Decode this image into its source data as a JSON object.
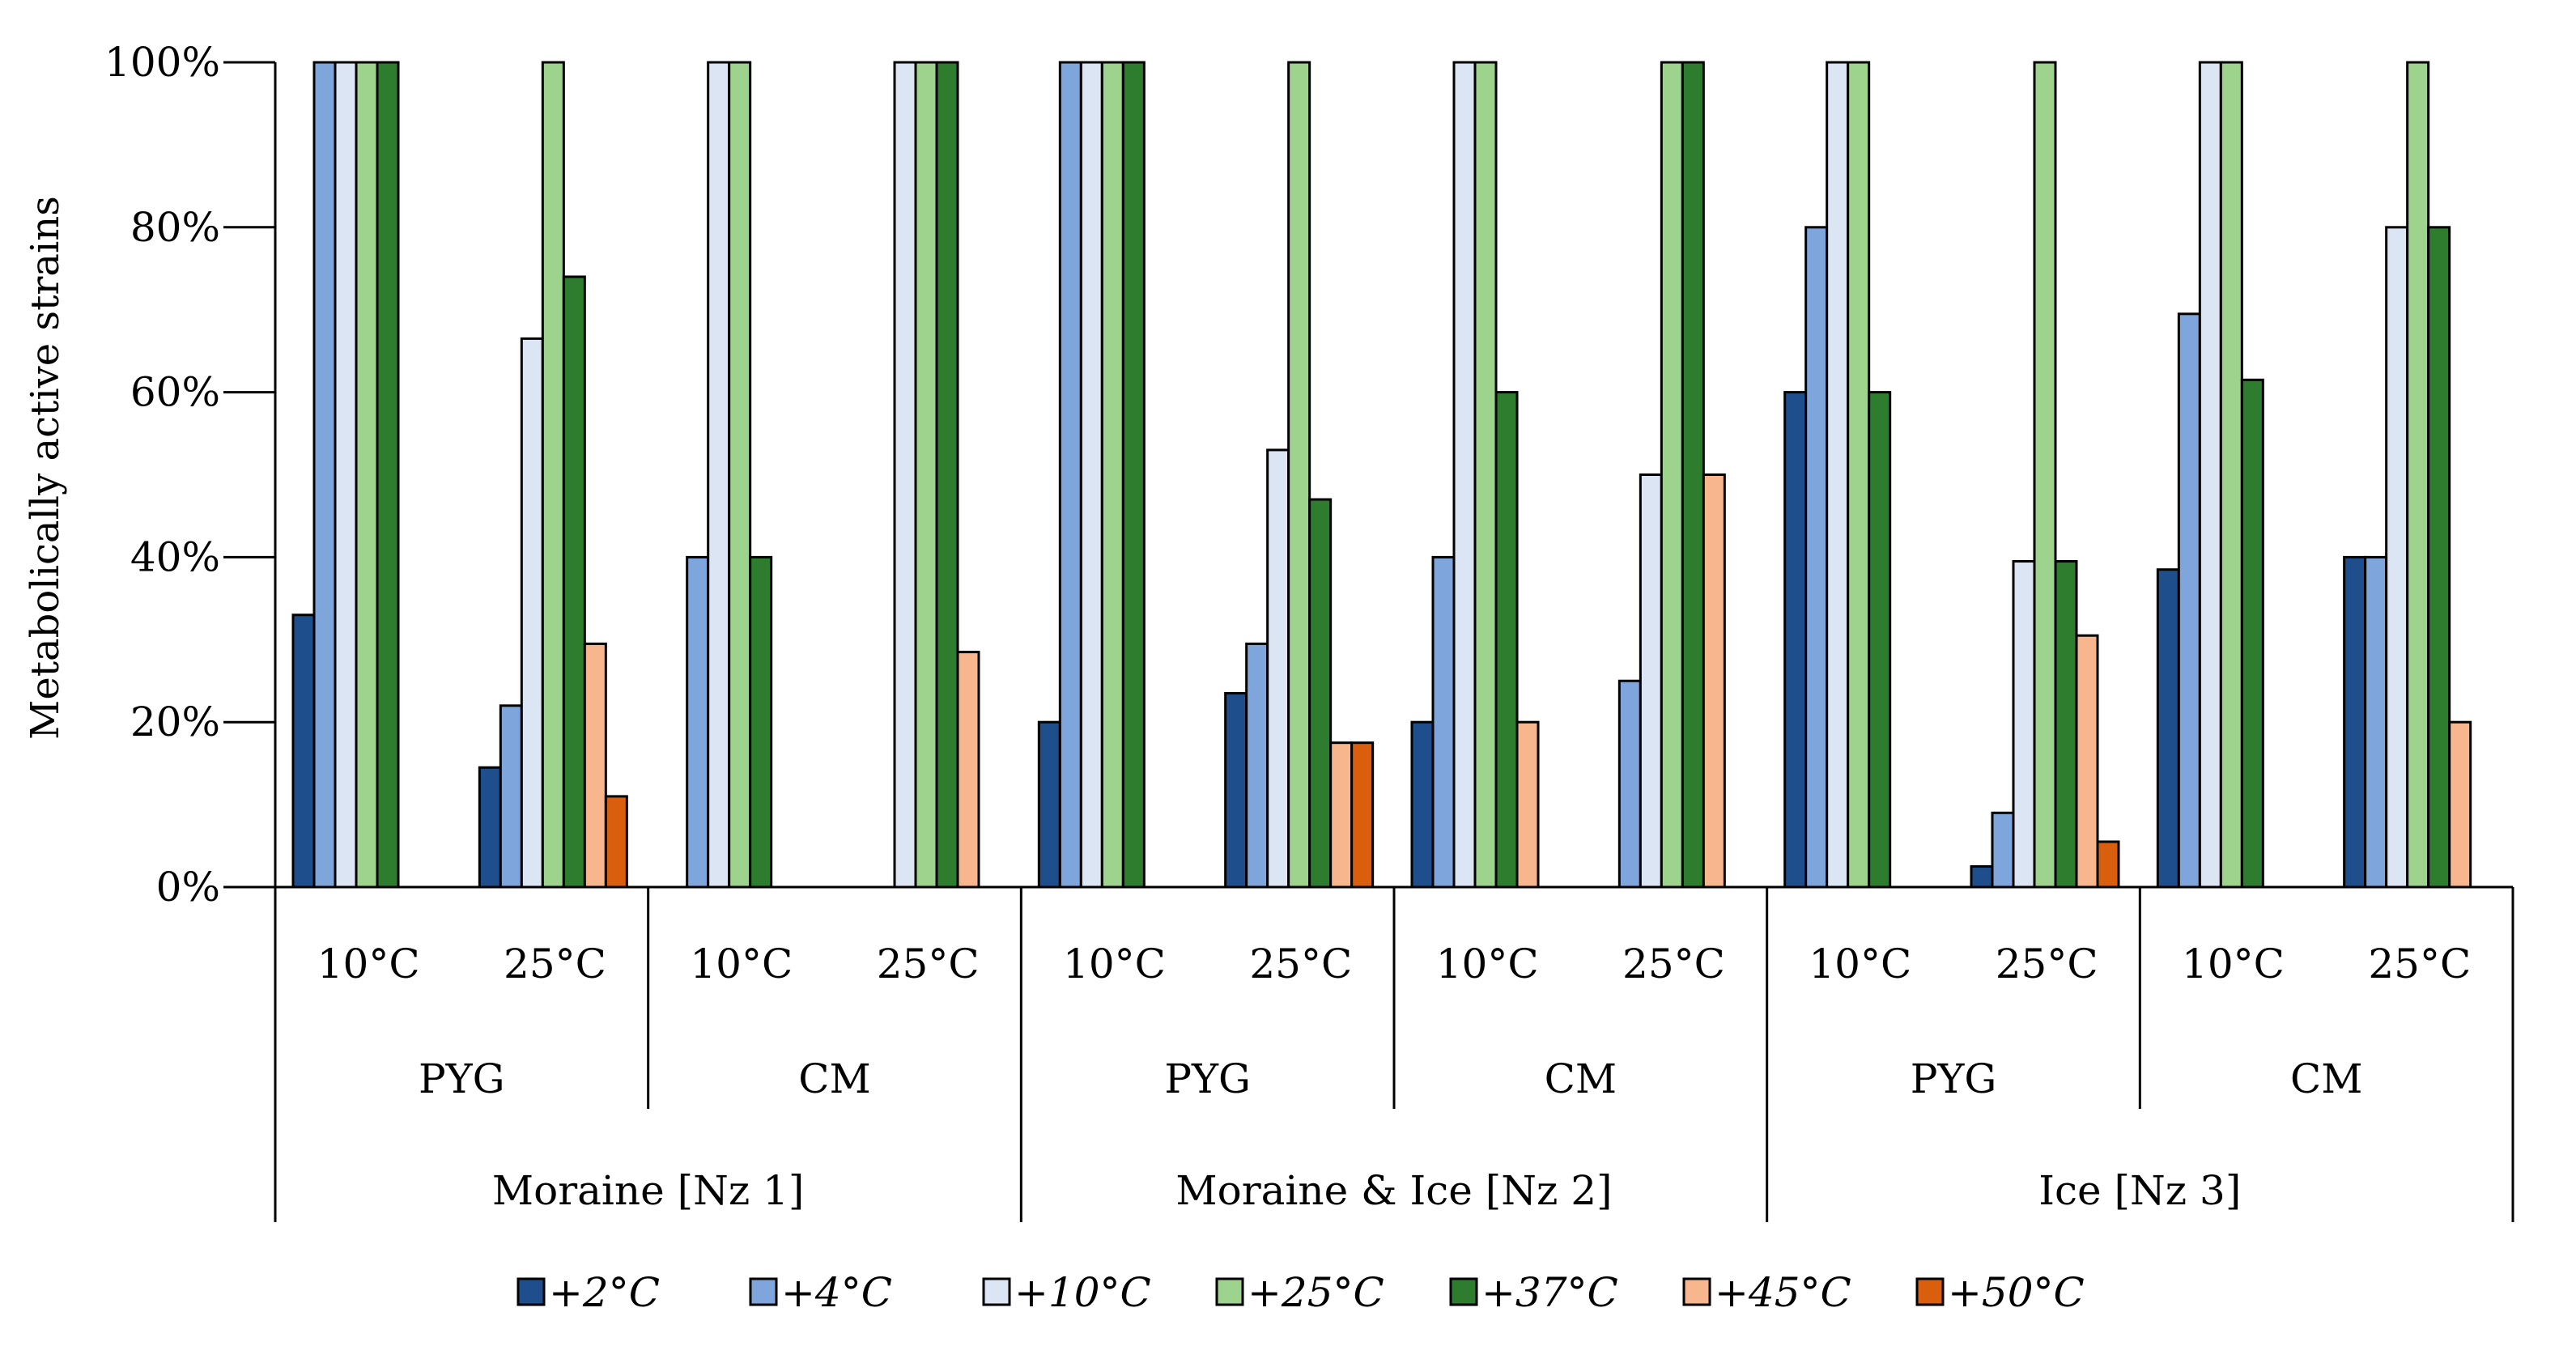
{
  "chart_data": {
    "type": "bar",
    "ylabel": "Metabolically active strains",
    "ylim": [
      0,
      100
    ],
    "yticks": [
      "0%",
      "20%",
      "40%",
      "60%",
      "80%",
      "100%"
    ],
    "grid": false,
    "legend_position": "bottom",
    "level1_labels": [
      "10°C",
      "25°C",
      "10°C",
      "25°C",
      "10°C",
      "25°C",
      "10°C",
      "25°C",
      "10°C",
      "25°C",
      "10°C",
      "25°C"
    ],
    "level2_labels": [
      "PYG",
      "CM",
      "PYG",
      "CM",
      "PYG",
      "CM"
    ],
    "level3_labels": [
      "Moraine [Nz 1]",
      "Moraine & Ice [Nz 2]",
      "Ice [Nz 3]"
    ],
    "series": [
      {
        "name": "+2°C",
        "color": "#1f4e8c",
        "values": [
          33,
          14.5,
          0,
          0,
          20,
          23.5,
          20,
          0,
          60,
          2.5,
          38.5,
          40
        ]
      },
      {
        "name": "+4°C",
        "color": "#7ea6dd",
        "values": [
          100,
          22,
          40,
          0,
          100,
          29.5,
          40,
          25,
          80,
          9,
          69.5,
          40
        ]
      },
      {
        "name": "+10°C",
        "color": "#dbe5f3",
        "values": [
          100,
          66.5,
          100,
          100,
          100,
          53,
          100,
          50,
          100,
          39.5,
          100,
          80
        ]
      },
      {
        "name": "+25°C",
        "color": "#9ed38e",
        "values": [
          100,
          100,
          100,
          100,
          100,
          100,
          100,
          100,
          100,
          100,
          100,
          100
        ]
      },
      {
        "name": "+37°C",
        "color": "#2e7d2e",
        "values": [
          100,
          74,
          40,
          100,
          100,
          47,
          60,
          100,
          60,
          39.5,
          61.5,
          80
        ]
      },
      {
        "name": "+45°C",
        "color": "#f7b68e",
        "values": [
          0,
          29.5,
          0,
          28.5,
          0,
          17.5,
          20,
          50,
          0,
          30.5,
          0,
          20
        ]
      },
      {
        "name": "+50°C",
        "color": "#d95f0e",
        "values": [
          0,
          11,
          0,
          0,
          0,
          17.5,
          0,
          0,
          0,
          5.5,
          0,
          0
        ]
      }
    ]
  }
}
